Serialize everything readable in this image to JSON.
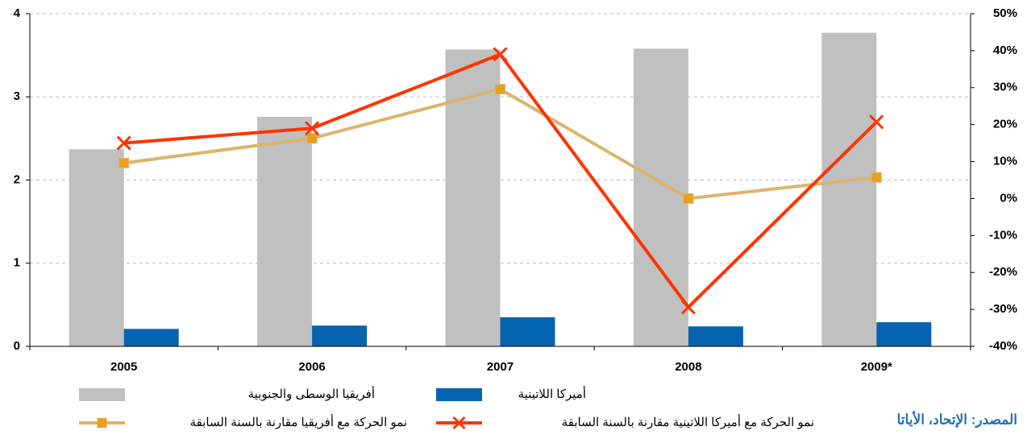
{
  "chart_data": {
    "type": "bar",
    "categories": [
      "2005",
      "2006",
      "2007",
      "2008",
      "2009*"
    ],
    "series": [
      {
        "name": "أفريقيا الوسطى والجنوبية",
        "type": "bar",
        "color": "#c0c0c0",
        "values": [
          2.37,
          2.76,
          3.57,
          3.58,
          3.77
        ]
      },
      {
        "name": "أميركا اللاتينية",
        "type": "bar",
        "color": "#0563b0",
        "values": [
          0.21,
          0.25,
          0.35,
          0.24,
          0.29
        ]
      },
      {
        "name": "نمو الحركة مع أفريقيا مقارنة بالسنة السابقة",
        "type": "line",
        "marker": "square",
        "color": "#dcb46c",
        "marker_color": "#e8a020",
        "axis": "y2",
        "values": [
          9.6,
          16.3,
          29.6,
          0,
          5.7
        ]
      },
      {
        "name": "نمو الحركة مع أميركا اللاتينية مقارنة بالسنة السابقة",
        "type": "line",
        "marker": "x",
        "color": "#ff3300",
        "axis": "y2",
        "values": [
          15,
          19,
          39,
          -29.4,
          20.7
        ]
      }
    ],
    "ylim": [
      0,
      4
    ],
    "yticks": [
      0,
      1,
      2,
      3,
      4
    ],
    "y2lim": [
      -40,
      50
    ],
    "y2ticks": [
      {
        "value": -40,
        "label": "-40%"
      },
      {
        "value": -30,
        "label": "-30%"
      },
      {
        "value": -20,
        "label": "-20%"
      },
      {
        "value": -10,
        "label": "-10%"
      },
      {
        "value": 0,
        "label": "0%"
      },
      {
        "value": 10,
        "label": "10%"
      },
      {
        "value": 20,
        "label": "20%"
      },
      {
        "value": 30,
        "label": "30%"
      },
      {
        "value": 40,
        "label": "40%"
      },
      {
        "value": 50,
        "label": "50%"
      }
    ],
    "grid": true,
    "source": "المصدر: الإتحاد، الأياتا"
  }
}
